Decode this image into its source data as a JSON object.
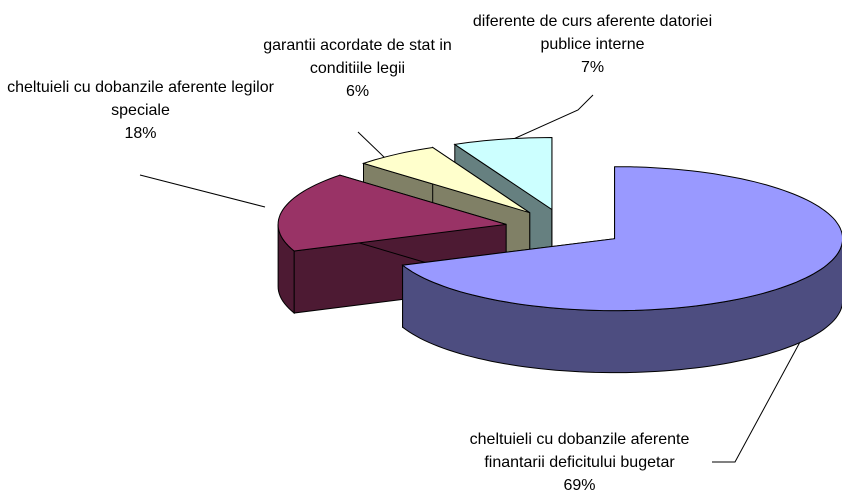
{
  "chart_data": {
    "type": "pie",
    "categories": [
      "cheltuieli cu dobanzile aferente finantarii deficitului bugetar",
      "cheltuieli cu dobanzile aferente legilor speciale",
      "garantii acordate de stat in conditiile legii",
      "diferente de curs aferente datoriei publice interne"
    ],
    "values": [
      69,
      18,
      6,
      7
    ],
    "value_labels": [
      "69%",
      "18%",
      "6%",
      "7%"
    ],
    "colors": [
      "#9999ff",
      "#993366",
      "#ffffcc",
      "#ccffff"
    ]
  }
}
